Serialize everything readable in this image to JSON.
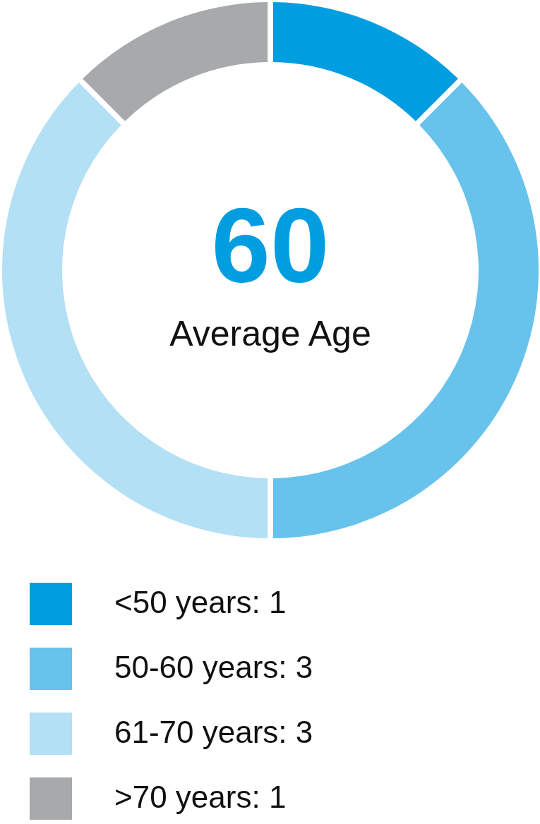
{
  "chart_data": {
    "type": "donut",
    "categories": [
      "<50 years: 1",
      "50-60 years: 3",
      "61-70 years: 3",
      ">70 years: 1"
    ],
    "values": [
      1,
      3,
      3,
      1
    ],
    "colors": [
      "#009ee0",
      "#67c2ec",
      "#b3e0f5",
      "#a7a9ab"
    ],
    "annotations": [
      "60",
      "Average Age"
    ],
    "legend": "bottom"
  }
}
